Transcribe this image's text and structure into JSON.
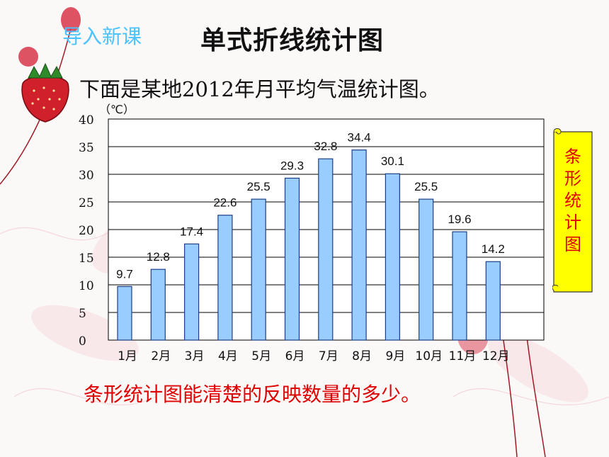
{
  "header": {
    "tag": "导入新课",
    "title": "单式折线统计图"
  },
  "intro": "下面是某地2012年月平均气温统计图。",
  "conclusion": "条形统计图能清楚的反映数量的多少。",
  "scroll_label": [
    "条",
    "形",
    "统",
    "计",
    "图"
  ],
  "colors": {
    "bar_fill": "#99ccff",
    "bar_stroke": "#1b3f8b",
    "accent_red": "#e00000",
    "tag_blue": "#4cc3ff",
    "scroll_yellow": "#ffff00"
  },
  "chart_data": {
    "type": "bar",
    "title": "",
    "ylabel": "（℃）",
    "xlabel": "",
    "ylim": [
      0,
      40
    ],
    "yticks": [
      0,
      5,
      10,
      15,
      20,
      25,
      30,
      35,
      40
    ],
    "grid": true,
    "categories": [
      "1月",
      "2月",
      "3月",
      "4月",
      "5月",
      "6月",
      "7月",
      "8月",
      "9月",
      "10月",
      "11月",
      "12月"
    ],
    "values": [
      9.7,
      12.8,
      17.4,
      22.6,
      25.5,
      29.3,
      32.8,
      34.4,
      30.1,
      25.5,
      19.6,
      14.2
    ]
  }
}
